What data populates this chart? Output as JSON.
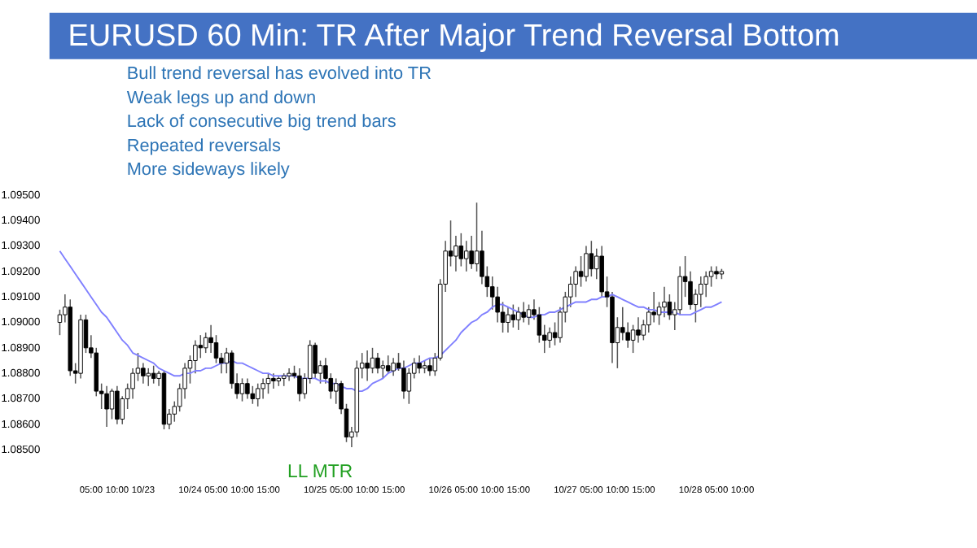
{
  "chart_data": {
    "type": "candlestick",
    "title": "EURUSD 60 Min: TR After Major Trend Reversal Bottom",
    "annotations": [
      "Bull trend reversal has evolved into TR",
      "Weak legs up and down",
      "Lack of consecutive big trend bars",
      "Repeated reversals",
      "More sideways likely",
      "LL MTR"
    ],
    "categories": [
      null,
      null,
      null,
      null,
      null,
      null,
      "05:00",
      null,
      null,
      null,
      null,
      "10:00",
      null,
      null,
      null,
      null,
      "10/23",
      null,
      null,
      null,
      null,
      null,
      null,
      null,
      null,
      "10/24",
      null,
      null,
      null,
      null,
      "05:00",
      null,
      null,
      null,
      null,
      "10:00",
      null,
      null,
      null,
      null,
      "15:00",
      null,
      null,
      null,
      null,
      null,
      null,
      null,
      null,
      "10/25",
      null,
      null,
      null,
      null,
      "05:00",
      null,
      null,
      null,
      null,
      "10:00",
      null,
      null,
      null,
      null,
      "15:00",
      null,
      null,
      null,
      null,
      null,
      null,
      null,
      null,
      "10/26",
      null,
      null,
      null,
      null,
      "05:00",
      null,
      null,
      null,
      null,
      "10:00",
      null,
      null,
      null,
      null,
      "15:00",
      null,
      null,
      null,
      null,
      null,
      null,
      null,
      null,
      "10/27",
      null,
      null,
      null,
      null,
      "05:00",
      null,
      null,
      null,
      null,
      "10:00",
      null,
      null,
      null,
      null,
      "15:00",
      null,
      null,
      null,
      null,
      null,
      null,
      null,
      null,
      "10/28",
      null,
      null,
      null,
      null,
      "05:00",
      null,
      null,
      null,
      null,
      "10:00"
    ],
    "ohlc": [
      [
        1.09,
        1.0905,
        1.0895,
        1.0903
      ],
      [
        1.0903,
        1.0911,
        1.09,
        1.0906
      ],
      [
        1.0906,
        1.0909,
        1.0879,
        1.0881
      ],
      [
        1.0881,
        1.0884,
        1.0876,
        1.088
      ],
      [
        1.088,
        1.0903,
        1.0878,
        1.0901
      ],
      [
        1.0901,
        1.0903,
        1.0888,
        1.089
      ],
      [
        1.089,
        1.0895,
        1.0886,
        1.0888
      ],
      [
        1.0888,
        1.089,
        1.0871,
        1.0873
      ],
      [
        1.0873,
        1.0876,
        1.0866,
        1.0872
      ],
      [
        1.0872,
        1.0875,
        1.0859,
        1.0866
      ],
      [
        1.0866,
        1.0874,
        1.0862,
        1.0873
      ],
      [
        1.0873,
        1.0875,
        1.086,
        1.0862
      ],
      [
        1.0862,
        1.0871,
        1.086,
        1.087
      ],
      [
        1.087,
        1.0876,
        1.0866,
        1.0874
      ],
      [
        1.0874,
        1.0882,
        1.087,
        1.088
      ],
      [
        1.088,
        1.0888,
        1.0877,
        1.0882
      ],
      [
        1.0882,
        1.0884,
        1.0876,
        1.0879
      ],
      [
        1.0879,
        1.0882,
        1.0875,
        1.088
      ],
      [
        1.088,
        1.0883,
        1.0876,
        1.0878
      ],
      [
        1.0878,
        1.0881,
        1.0875,
        1.088
      ],
      [
        1.088,
        1.0881,
        1.0858,
        1.086
      ],
      [
        1.086,
        1.0866,
        1.0858,
        1.0864
      ],
      [
        1.0864,
        1.0869,
        1.0861,
        1.0867
      ],
      [
        1.0867,
        1.0876,
        1.0865,
        1.0874
      ],
      [
        1.0874,
        1.0884,
        1.087,
        1.0882
      ],
      [
        1.0882,
        1.0887,
        1.0876,
        1.0885
      ],
      [
        1.0885,
        1.0893,
        1.088,
        1.0891
      ],
      [
        1.0891,
        1.0895,
        1.0886,
        1.089
      ],
      [
        1.089,
        1.0896,
        1.0888,
        1.0894
      ],
      [
        1.0894,
        1.0899,
        1.0888,
        1.0892
      ],
      [
        1.0892,
        1.0895,
        1.0884,
        1.0886
      ],
      [
        1.0886,
        1.0888,
        1.088,
        1.0884
      ],
      [
        1.0884,
        1.089,
        1.088,
        1.0888
      ],
      [
        1.0888,
        1.0889,
        1.0874,
        1.0876
      ],
      [
        1.0876,
        1.088,
        1.087,
        1.0872
      ],
      [
        1.0872,
        1.0878,
        1.0869,
        1.0876
      ],
      [
        1.0876,
        1.0878,
        1.087,
        1.0872
      ],
      [
        1.0872,
        1.0875,
        1.0868,
        1.087
      ],
      [
        1.087,
        1.0876,
        1.0867,
        1.0874
      ],
      [
        1.0874,
        1.0878,
        1.087,
        1.0876
      ],
      [
        1.0876,
        1.088,
        1.0872,
        1.0878
      ],
      [
        1.0878,
        1.088,
        1.0874,
        1.0877
      ],
      [
        1.0877,
        1.0879,
        1.0875,
        1.0878
      ],
      [
        1.0878,
        1.088,
        1.0875,
        1.0879
      ],
      [
        1.0879,
        1.0882,
        1.0877,
        1.088
      ],
      [
        1.088,
        1.0883,
        1.0878,
        1.0879
      ],
      [
        1.0879,
        1.0882,
        1.0869,
        1.0872
      ],
      [
        1.0872,
        1.088,
        1.087,
        1.0878
      ],
      [
        1.0878,
        1.0893,
        1.0876,
        1.0891
      ],
      [
        1.0891,
        1.0892,
        1.0878,
        1.088
      ],
      [
        1.088,
        1.0885,
        1.0876,
        1.0883
      ],
      [
        1.0883,
        1.0886,
        1.0876,
        1.0878
      ],
      [
        1.0878,
        1.088,
        1.087,
        1.0873
      ],
      [
        1.0873,
        1.0878,
        1.0868,
        1.0876
      ],
      [
        1.0876,
        1.0877,
        1.0864,
        1.0866
      ],
      [
        1.0866,
        1.0868,
        1.0853,
        1.0855
      ],
      [
        1.0855,
        1.0859,
        1.0851,
        1.0857
      ],
      [
        1.0857,
        1.0885,
        1.0855,
        1.0882
      ],
      [
        1.0882,
        1.0888,
        1.0878,
        1.0884
      ],
      [
        1.0884,
        1.0889,
        1.0877,
        1.0882
      ],
      [
        1.0882,
        1.089,
        1.088,
        1.0886
      ],
      [
        1.0886,
        1.0888,
        1.088,
        1.0882
      ],
      [
        1.0882,
        1.0885,
        1.0878,
        1.0883
      ],
      [
        1.0883,
        1.0887,
        1.088,
        1.0881
      ],
      [
        1.0881,
        1.0886,
        1.0879,
        1.0884
      ],
      [
        1.0884,
        1.0888,
        1.0881,
        1.0882
      ],
      [
        1.0882,
        1.0885,
        1.087,
        1.0873
      ],
      [
        1.0873,
        1.0882,
        1.0868,
        1.088
      ],
      [
        1.088,
        1.0886,
        1.0878,
        1.0884
      ],
      [
        1.0884,
        1.0887,
        1.088,
        1.0882
      ],
      [
        1.0882,
        1.0885,
        1.088,
        1.0883
      ],
      [
        1.0883,
        1.0886,
        1.0879,
        1.0881
      ],
      [
        1.0881,
        1.0888,
        1.0879,
        1.0886
      ],
      [
        1.0886,
        1.0917,
        1.0885,
        1.0915
      ],
      [
        1.0915,
        1.0932,
        1.0912,
        1.0928
      ],
      [
        1.0928,
        1.094,
        1.0922,
        1.0926
      ],
      [
        1.0926,
        1.0934,
        1.092,
        1.093
      ],
      [
        1.093,
        1.0935,
        1.0922,
        1.0925
      ],
      [
        1.0925,
        1.0932,
        1.092,
        1.0928
      ],
      [
        1.0928,
        1.0934,
        1.0921,
        1.0923
      ],
      [
        1.0923,
        1.0947,
        1.092,
        1.0928
      ],
      [
        1.0928,
        1.0936,
        1.0915,
        1.0918
      ],
      [
        1.0918,
        1.0922,
        1.091,
        1.0914
      ],
      [
        1.0914,
        1.0918,
        1.0905,
        1.091
      ],
      [
        1.091,
        1.0914,
        1.09,
        1.0904
      ],
      [
        1.0904,
        1.0908,
        1.0896,
        1.09
      ],
      [
        1.09,
        1.0906,
        1.0896,
        1.0903
      ],
      [
        1.0903,
        1.0907,
        1.0898,
        1.0901
      ],
      [
        1.0901,
        1.0906,
        1.0897,
        1.0904
      ],
      [
        1.0904,
        1.0908,
        1.09,
        1.0902
      ],
      [
        1.0902,
        1.0907,
        1.0899,
        1.0905
      ],
      [
        1.0905,
        1.0909,
        1.0901,
        1.0903
      ],
      [
        1.0903,
        1.0906,
        1.0892,
        1.0895
      ],
      [
        1.0895,
        1.0899,
        1.0888,
        1.0893
      ],
      [
        1.0893,
        1.0898,
        1.089,
        1.0896
      ],
      [
        1.0896,
        1.09,
        1.0891,
        1.0894
      ],
      [
        1.0894,
        1.0906,
        1.0892,
        1.0904
      ],
      [
        1.0904,
        1.0912,
        1.09,
        1.091
      ],
      [
        1.091,
        1.0918,
        1.0906,
        1.0915
      ],
      [
        1.0915,
        1.0922,
        1.091,
        1.092
      ],
      [
        1.092,
        1.0926,
        1.0914,
        1.0918
      ],
      [
        1.0918,
        1.093,
        1.0916,
        1.0927
      ],
      [
        1.0927,
        1.0932,
        1.0918,
        1.0921
      ],
      [
        1.0921,
        1.0929,
        1.0917,
        1.0926
      ],
      [
        1.0926,
        1.093,
        1.091,
        1.0912
      ],
      [
        1.0912,
        1.0918,
        1.0906,
        1.091
      ],
      [
        1.091,
        1.0912,
        1.0884,
        1.0892
      ],
      [
        1.0892,
        1.0902,
        1.0882,
        1.0898
      ],
      [
        1.0898,
        1.0906,
        1.0893,
        1.0896
      ],
      [
        1.0896,
        1.09,
        1.089,
        1.0893
      ],
      [
        1.0893,
        1.0899,
        1.0888,
        1.0897
      ],
      [
        1.0897,
        1.0902,
        1.0892,
        1.0895
      ],
      [
        1.0895,
        1.0901,
        1.0893,
        1.0899
      ],
      [
        1.0899,
        1.0906,
        1.0896,
        1.0904
      ],
      [
        1.0904,
        1.0912,
        1.09,
        1.0903
      ],
      [
        1.0903,
        1.0908,
        1.0899,
        1.0906
      ],
      [
        1.0906,
        1.0914,
        1.0902,
        1.0908
      ],
      [
        1.0908,
        1.0911,
        1.0901,
        1.0903
      ],
      [
        1.0903,
        1.0908,
        1.0897,
        1.0905
      ],
      [
        1.0905,
        1.0922,
        1.0903,
        1.0918
      ],
      [
        1.0918,
        1.0926,
        1.091,
        1.0916
      ],
      [
        1.0916,
        1.092,
        1.0905,
        1.0907
      ],
      [
        1.0907,
        1.0913,
        1.09,
        1.0911
      ],
      [
        1.0911,
        1.0918,
        1.0906,
        1.0915
      ],
      [
        1.0915,
        1.092,
        1.091,
        1.0918
      ],
      [
        1.0918,
        1.0922,
        1.0914,
        1.092
      ],
      [
        1.092,
        1.0922,
        1.0917,
        1.0919
      ],
      [
        1.0919,
        1.0921,
        1.0917,
        1.092
      ],
      null,
      null,
      null,
      null
    ],
    "series": [
      {
        "type": "line",
        "color": "#8080ff",
        "values": [
          1.0928,
          1.0925,
          1.0922,
          1.0919,
          1.0916,
          1.0913,
          1.091,
          1.0907,
          1.0904,
          1.0902,
          1.0899,
          1.0896,
          1.0893,
          1.0891,
          1.0888,
          1.0887,
          1.0886,
          1.0885,
          1.0884,
          1.0882,
          1.0881,
          1.088,
          1.0879,
          1.0879,
          1.088,
          1.088,
          1.0881,
          1.0881,
          1.0882,
          1.0882,
          1.0883,
          1.0884,
          1.0884,
          1.0885,
          1.0884,
          1.0884,
          1.0883,
          1.0882,
          1.0881,
          1.088,
          1.088,
          1.0879,
          1.0879,
          1.0879,
          1.0879,
          1.0879,
          1.0878,
          1.0878,
          1.0878,
          1.0878,
          1.0877,
          1.0877,
          1.0876,
          1.0876,
          1.0875,
          1.0874,
          1.0874,
          1.0873,
          1.0873,
          1.0874,
          1.0876,
          1.0877,
          1.0878,
          1.088,
          1.0881,
          1.0882,
          1.0882,
          1.0883,
          1.0884,
          1.0884,
          1.0885,
          1.0886,
          1.0886,
          1.0887,
          1.0889,
          1.0891,
          1.0893,
          1.0896,
          1.0898,
          1.09,
          1.0901,
          1.0903,
          1.0904,
          1.0906,
          1.0907,
          1.0907,
          1.0906,
          1.0905,
          1.0904,
          1.0903,
          1.0902,
          1.0902,
          1.0903,
          1.0903,
          1.0904,
          1.0904,
          1.0905,
          1.0906,
          1.0907,
          1.0908,
          1.0908,
          1.0908,
          1.0909,
          1.0909,
          1.091,
          1.091,
          1.0911,
          1.091,
          1.0909,
          1.0908,
          1.0907,
          1.0906,
          1.0906,
          1.0905,
          1.0905,
          1.0904,
          1.0904,
          1.0904,
          1.0904,
          1.0903,
          1.0903,
          1.0903,
          1.0904,
          1.0905,
          1.0906,
          1.0906,
          1.0907,
          1.0908,
          null,
          null,
          null,
          null
        ]
      }
    ],
    "ylim": [
      1.085,
      1.095
    ],
    "yticks": [
      {
        "value": 1.085,
        "label": "1.08500"
      },
      {
        "value": 1.086,
        "label": "1.08600"
      },
      {
        "value": 1.087,
        "label": "1.08700"
      },
      {
        "value": 1.088,
        "label": "1.08800"
      },
      {
        "value": 1.089,
        "label": "1.08900"
      },
      {
        "value": 1.09,
        "label": "1.09000"
      },
      {
        "value": 1.091,
        "label": "1.09100"
      },
      {
        "value": 1.092,
        "label": "1.09200"
      },
      {
        "value": 1.093,
        "label": "1.09300"
      },
      {
        "value": 1.094,
        "label": "1.09400"
      },
      {
        "value": 1.095,
        "label": "1.09500"
      }
    ]
  }
}
